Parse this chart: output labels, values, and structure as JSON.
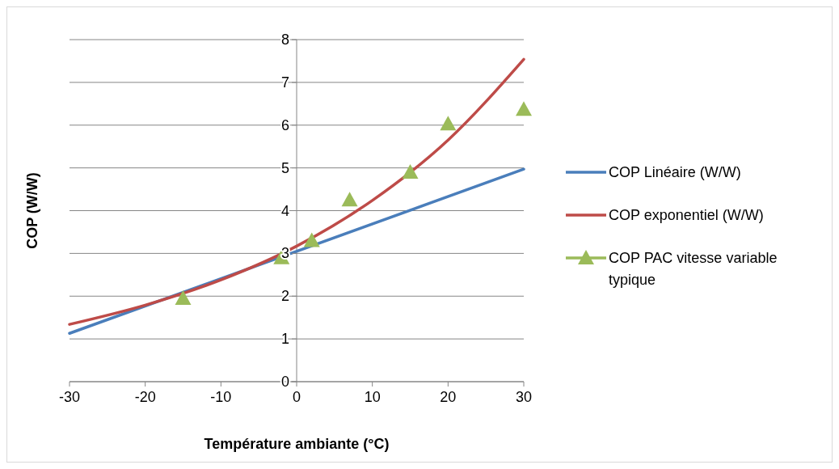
{
  "chart_data": {
    "type": "line",
    "xlabel": "Température ambiante (°C)",
    "ylabel": "COP (W/W)",
    "xlim": [
      -30,
      30
    ],
    "xticks": [
      -30,
      -20,
      -10,
      0,
      10,
      20,
      30
    ],
    "ylim": [
      0,
      8
    ],
    "yticks": [
      0,
      1,
      2,
      3,
      4,
      5,
      6,
      7,
      8
    ],
    "grid": "y",
    "legend": "right",
    "series": [
      {
        "name": "COP Linéaire (W/W)",
        "color": "#4a7ebb",
        "x": [
          -30,
          30
        ],
        "values": [
          1.13,
          4.97
        ]
      },
      {
        "name": "COP exponentiel (W/W)",
        "color": "#be4b48",
        "x": [
          -30,
          -20,
          -10,
          0,
          10,
          20,
          30
        ],
        "values": [
          1.34,
          1.79,
          2.38,
          3.17,
          4.24,
          5.65,
          7.54
        ]
      },
      {
        "name": "COP PAC vitesse variable typique",
        "color": "#9bbb59",
        "type": "scatter",
        "marker": "triangle",
        "x": [
          -15,
          -2,
          2,
          7,
          15,
          20,
          30
        ],
        "values": [
          1.95,
          2.9,
          3.3,
          4.25,
          4.9,
          6.03,
          6.37
        ]
      }
    ]
  }
}
